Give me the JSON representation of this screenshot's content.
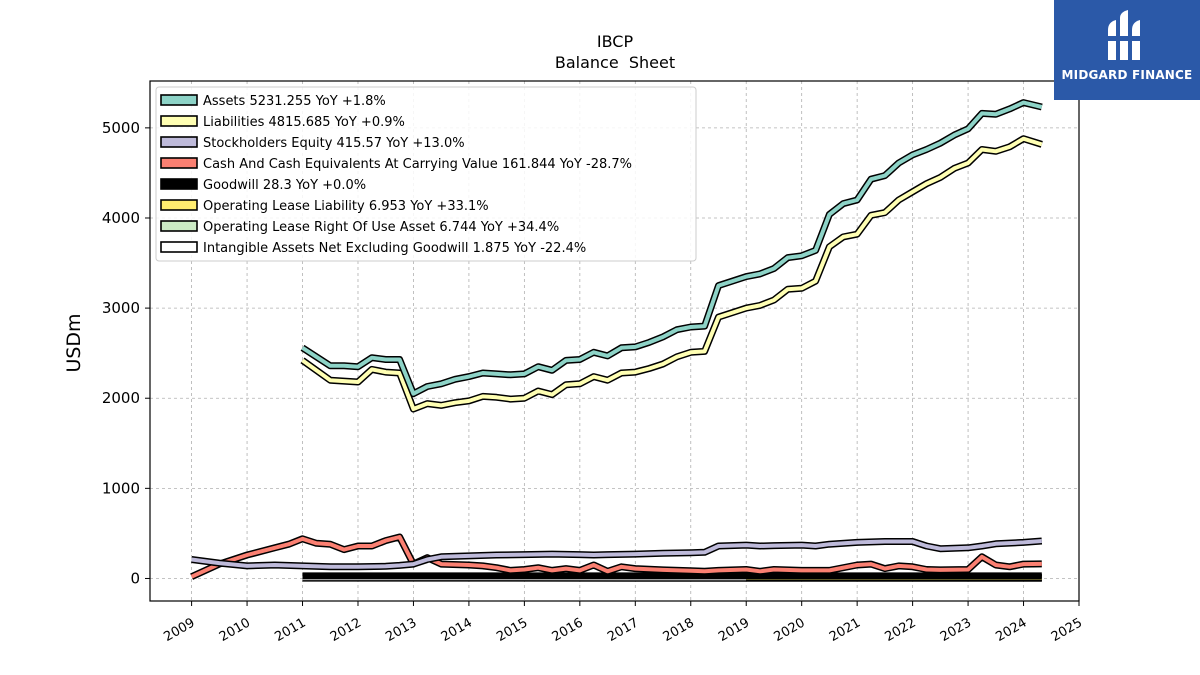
{
  "chart_data": {
    "type": "line",
    "title": "IBCP",
    "subtitle": "Balance  Sheet",
    "ylabel": "USDm",
    "xlabel": "",
    "xlim": [
      2008.25,
      2025.0
    ],
    "ylim": [
      -250,
      5520
    ],
    "x_ticks": [
      "2009",
      "2010",
      "2011",
      "2012",
      "2013",
      "2014",
      "2015",
      "2016",
      "2017",
      "2018",
      "2019",
      "2020",
      "2021",
      "2022",
      "2023",
      "2024",
      "2025"
    ],
    "y_ticks": [
      "0",
      "1000",
      "2000",
      "3000",
      "4000",
      "5000"
    ],
    "grid": true,
    "legend_position": "top-left",
    "series": [
      {
        "name": "Assets",
        "legend": "Assets  5231.255 YoY +1.8%",
        "color": "#8dd3c7",
        "points": [
          [
            2011.0,
            2560
          ],
          [
            2011.5,
            2360
          ],
          [
            2011.75,
            2360
          ],
          [
            2012.0,
            2350
          ],
          [
            2012.25,
            2450
          ],
          [
            2012.5,
            2430
          ],
          [
            2012.75,
            2430
          ],
          [
            2013.0,
            2050
          ],
          [
            2013.25,
            2130
          ],
          [
            2013.5,
            2160
          ],
          [
            2013.75,
            2210
          ],
          [
            2014.0,
            2240
          ],
          [
            2014.25,
            2280
          ],
          [
            2014.5,
            2270
          ],
          [
            2014.75,
            2260
          ],
          [
            2015.0,
            2270
          ],
          [
            2015.25,
            2350
          ],
          [
            2015.5,
            2310
          ],
          [
            2015.75,
            2420
          ],
          [
            2016.0,
            2430
          ],
          [
            2016.25,
            2510
          ],
          [
            2016.5,
            2470
          ],
          [
            2016.75,
            2560
          ],
          [
            2017.0,
            2570
          ],
          [
            2017.25,
            2620
          ],
          [
            2017.5,
            2680
          ],
          [
            2017.75,
            2760
          ],
          [
            2018.0,
            2790
          ],
          [
            2018.25,
            2800
          ],
          [
            2018.5,
            3250
          ],
          [
            2018.75,
            3300
          ],
          [
            2019.0,
            3350
          ],
          [
            2019.25,
            3380
          ],
          [
            2019.5,
            3440
          ],
          [
            2019.75,
            3560
          ],
          [
            2020.0,
            3580
          ],
          [
            2020.25,
            3640
          ],
          [
            2020.5,
            4040
          ],
          [
            2020.75,
            4160
          ],
          [
            2021.0,
            4200
          ],
          [
            2021.25,
            4430
          ],
          [
            2021.5,
            4470
          ],
          [
            2021.75,
            4610
          ],
          [
            2022.0,
            4700
          ],
          [
            2022.25,
            4760
          ],
          [
            2022.5,
            4830
          ],
          [
            2022.75,
            4920
          ],
          [
            2023.0,
            4990
          ],
          [
            2023.25,
            5160
          ],
          [
            2023.5,
            5150
          ],
          [
            2023.75,
            5210
          ],
          [
            2024.0,
            5280
          ],
          [
            2024.33,
            5231
          ]
        ]
      },
      {
        "name": "Liabilities",
        "legend": "Liabilities  4815.685 YoY +0.9%",
        "color": "#ffffb3",
        "points": [
          [
            2011.0,
            2420
          ],
          [
            2011.5,
            2200
          ],
          [
            2011.75,
            2190
          ],
          [
            2012.0,
            2180
          ],
          [
            2012.25,
            2320
          ],
          [
            2012.5,
            2290
          ],
          [
            2012.75,
            2280
          ],
          [
            2013.0,
            1880
          ],
          [
            2013.25,
            1940
          ],
          [
            2013.5,
            1920
          ],
          [
            2013.75,
            1950
          ],
          [
            2014.0,
            1970
          ],
          [
            2014.25,
            2020
          ],
          [
            2014.5,
            2010
          ],
          [
            2014.75,
            1990
          ],
          [
            2015.0,
            2000
          ],
          [
            2015.25,
            2080
          ],
          [
            2015.5,
            2040
          ],
          [
            2015.75,
            2150
          ],
          [
            2016.0,
            2160
          ],
          [
            2016.25,
            2240
          ],
          [
            2016.5,
            2200
          ],
          [
            2016.75,
            2280
          ],
          [
            2017.0,
            2290
          ],
          [
            2017.25,
            2330
          ],
          [
            2017.5,
            2380
          ],
          [
            2017.75,
            2460
          ],
          [
            2018.0,
            2510
          ],
          [
            2018.25,
            2520
          ],
          [
            2018.5,
            2900
          ],
          [
            2018.75,
            2950
          ],
          [
            2019.0,
            3000
          ],
          [
            2019.25,
            3030
          ],
          [
            2019.5,
            3090
          ],
          [
            2019.75,
            3210
          ],
          [
            2020.0,
            3220
          ],
          [
            2020.25,
            3300
          ],
          [
            2020.5,
            3680
          ],
          [
            2020.75,
            3790
          ],
          [
            2021.0,
            3820
          ],
          [
            2021.25,
            4030
          ],
          [
            2021.5,
            4060
          ],
          [
            2021.75,
            4200
          ],
          [
            2022.0,
            4290
          ],
          [
            2022.25,
            4380
          ],
          [
            2022.5,
            4450
          ],
          [
            2022.75,
            4550
          ],
          [
            2023.0,
            4610
          ],
          [
            2023.25,
            4760
          ],
          [
            2023.5,
            4740
          ],
          [
            2023.75,
            4790
          ],
          [
            2024.0,
            4880
          ],
          [
            2024.33,
            4816
          ]
        ]
      },
      {
        "name": "Stockholders Equity",
        "legend": "Stockholders Equity  415.57 YoY +13.0%",
        "color": "#bebada",
        "points": [
          [
            2009.0,
            210
          ],
          [
            2009.5,
            170
          ],
          [
            2010.0,
            140
          ],
          [
            2010.5,
            150
          ],
          [
            2011.0,
            140
          ],
          [
            2011.5,
            130
          ],
          [
            2012.0,
            130
          ],
          [
            2012.5,
            135
          ],
          [
            2012.75,
            145
          ],
          [
            2013.0,
            160
          ],
          [
            2013.25,
            210
          ],
          [
            2013.5,
            240
          ],
          [
            2014.0,
            250
          ],
          [
            2014.5,
            260
          ],
          [
            2015.0,
            265
          ],
          [
            2015.5,
            270
          ],
          [
            2016.0,
            265
          ],
          [
            2016.25,
            260
          ],
          [
            2016.5,
            265
          ],
          [
            2017.0,
            270
          ],
          [
            2017.5,
            280
          ],
          [
            2018.0,
            285
          ],
          [
            2018.25,
            290
          ],
          [
            2018.5,
            360
          ],
          [
            2019.0,
            370
          ],
          [
            2019.25,
            360
          ],
          [
            2019.5,
            365
          ],
          [
            2020.0,
            370
          ],
          [
            2020.25,
            360
          ],
          [
            2020.5,
            380
          ],
          [
            2021.0,
            400
          ],
          [
            2021.5,
            410
          ],
          [
            2022.0,
            410
          ],
          [
            2022.25,
            360
          ],
          [
            2022.5,
            330
          ],
          [
            2023.0,
            340
          ],
          [
            2023.25,
            360
          ],
          [
            2023.5,
            385
          ],
          [
            2024.0,
            400
          ],
          [
            2024.33,
            416
          ]
        ]
      },
      {
        "name": "Cash And Cash Equivalents At Carrying Value",
        "legend": "Cash And Cash Equivalents At Carrying Value  161.844 YoY -28.7%",
        "color": "#fb8072",
        "points": [
          [
            2009.0,
            20
          ],
          [
            2009.5,
            160
          ],
          [
            2010.0,
            260
          ],
          [
            2010.5,
            340
          ],
          [
            2010.75,
            380
          ],
          [
            2011.0,
            440
          ],
          [
            2011.25,
            390
          ],
          [
            2011.5,
            380
          ],
          [
            2011.75,
            320
          ],
          [
            2012.0,
            360
          ],
          [
            2012.25,
            360
          ],
          [
            2012.5,
            420
          ],
          [
            2012.75,
            460
          ],
          [
            2013.0,
            160
          ],
          [
            2013.25,
            230
          ],
          [
            2013.5,
            160
          ],
          [
            2014.0,
            150
          ],
          [
            2014.25,
            140
          ],
          [
            2014.5,
            120
          ],
          [
            2014.75,
            90
          ],
          [
            2015.0,
            100
          ],
          [
            2015.25,
            120
          ],
          [
            2015.5,
            90
          ],
          [
            2015.75,
            110
          ],
          [
            2016.0,
            90
          ],
          [
            2016.25,
            150
          ],
          [
            2016.5,
            80
          ],
          [
            2016.75,
            130
          ],
          [
            2017.0,
            110
          ],
          [
            2017.5,
            95
          ],
          [
            2018.0,
            85
          ],
          [
            2018.25,
            80
          ],
          [
            2018.5,
            90
          ],
          [
            2019.0,
            100
          ],
          [
            2019.25,
            80
          ],
          [
            2019.5,
            100
          ],
          [
            2020.0,
            90
          ],
          [
            2020.5,
            90
          ],
          [
            2021.0,
            150
          ],
          [
            2021.25,
            160
          ],
          [
            2021.5,
            110
          ],
          [
            2021.75,
            140
          ],
          [
            2022.0,
            130
          ],
          [
            2022.25,
            100
          ],
          [
            2022.5,
            95
          ],
          [
            2023.0,
            100
          ],
          [
            2023.25,
            240
          ],
          [
            2023.5,
            150
          ],
          [
            2023.75,
            130
          ],
          [
            2024.0,
            160
          ],
          [
            2024.33,
            162
          ]
        ]
      },
      {
        "name": "Goodwill",
        "legend": "Goodwill  28.3 YoY +0.0%",
        "color": "#000000",
        "points": [
          [
            2011.0,
            28.3
          ],
          [
            2024.33,
            28.3
          ]
        ]
      },
      {
        "name": "Operating Lease Liability",
        "legend": "Operating Lease Liability  6.953 YoY +33.1%",
        "color": "#ffed6f",
        "points": [
          [
            2019.0,
            8
          ],
          [
            2024.33,
            7
          ]
        ]
      },
      {
        "name": "Operating Lease Right Of Use Asset",
        "legend": "Operating Lease Right Of Use Asset  6.744 YoY +34.4%",
        "color": "#ccebc5",
        "points": [
          [
            2019.0,
            7
          ],
          [
            2024.33,
            6.7
          ]
        ]
      },
      {
        "name": "Intangible Assets Net Excluding Goodwill",
        "legend": "Intangible Assets Net Excluding Goodwill  1.875 YoY -22.4%",
        "color": "#ffffff",
        "points": [
          [
            2011.0,
            4
          ],
          [
            2024.33,
            1.9
          ]
        ]
      }
    ]
  },
  "logo": {
    "name": "MIDGARD FINANCE",
    "bg": "#2b59a8"
  }
}
